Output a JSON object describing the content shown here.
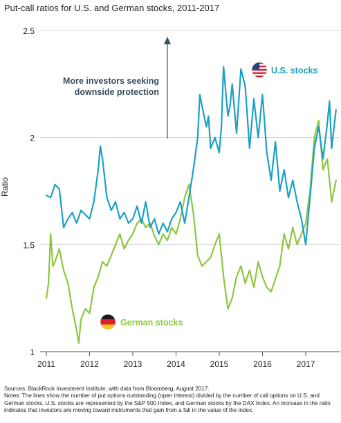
{
  "chart_data": {
    "type": "line",
    "title": "Put-call ratios for U.S. and German stocks, 2011-2017",
    "ylabel": "Ratio",
    "xlabel": "",
    "xlim": [
      2011,
      2017.8
    ],
    "ylim": [
      1,
      2.5
    ],
    "x_ticks": [
      "2011",
      "2012",
      "2013",
      "2014",
      "2015",
      "2016",
      "2017"
    ],
    "y_ticks": [
      "1",
      "1.5",
      "2",
      "2.5"
    ],
    "grid": "horizontal",
    "annotation": [
      "More investors seeking",
      "downside protection"
    ],
    "colors": {
      "us": "#1ba0c4",
      "german": "#8dc63f",
      "annotation": "#3a4f5f",
      "grid": "#c9c9c9"
    },
    "series": [
      {
        "name": "U.S. stocks",
        "flag": "us-flag-icon",
        "x": [
          2011.0,
          2011.1,
          2011.2,
          2011.3,
          2011.4,
          2011.5,
          2011.6,
          2011.7,
          2011.8,
          2011.9,
          2012.0,
          2012.1,
          2012.2,
          2012.25,
          2012.3,
          2012.4,
          2012.5,
          2012.6,
          2012.7,
          2012.8,
          2012.9,
          2013.0,
          2013.1,
          2013.2,
          2013.3,
          2013.4,
          2013.5,
          2013.6,
          2013.7,
          2013.8,
          2013.9,
          2014.0,
          2014.1,
          2014.2,
          2014.3,
          2014.4,
          2014.5,
          2014.55,
          2014.6,
          2014.7,
          2014.75,
          2014.8,
          2014.9,
          2015.0,
          2015.05,
          2015.1,
          2015.2,
          2015.25,
          2015.3,
          2015.4,
          2015.5,
          2015.6,
          2015.7,
          2015.8,
          2015.9,
          2016.0,
          2016.1,
          2016.2,
          2016.3,
          2016.4,
          2016.5,
          2016.6,
          2016.7,
          2016.8,
          2016.9,
          2017.0,
          2017.1,
          2017.2,
          2017.3,
          2017.4,
          2017.5,
          2017.55,
          2017.6,
          2017.7
        ],
        "values": [
          1.73,
          1.72,
          1.78,
          1.76,
          1.58,
          1.62,
          1.65,
          1.6,
          1.66,
          1.64,
          1.62,
          1.7,
          1.85,
          1.96,
          1.9,
          1.72,
          1.66,
          1.7,
          1.62,
          1.65,
          1.6,
          1.62,
          1.68,
          1.6,
          1.7,
          1.58,
          1.62,
          1.55,
          1.6,
          1.56,
          1.62,
          1.65,
          1.7,
          1.6,
          1.72,
          1.85,
          2.0,
          2.2,
          2.15,
          2.05,
          2.1,
          1.95,
          2.0,
          1.93,
          2.05,
          2.33,
          2.1,
          2.15,
          2.25,
          2.02,
          2.32,
          2.24,
          1.95,
          2.18,
          2.0,
          2.2,
          1.93,
          1.8,
          1.98,
          1.75,
          1.85,
          1.72,
          1.8,
          1.7,
          1.62,
          1.5,
          1.72,
          1.95,
          2.05,
          1.9,
          2.07,
          2.17,
          1.95,
          2.13
        ]
      },
      {
        "name": "German stocks",
        "flag": "german-flag-icon",
        "x": [
          2011.0,
          2011.05,
          2011.1,
          2011.15,
          2011.2,
          2011.3,
          2011.4,
          2011.5,
          2011.6,
          2011.7,
          2011.75,
          2011.8,
          2011.9,
          2012.0,
          2012.1,
          2012.2,
          2012.3,
          2012.4,
          2012.5,
          2012.6,
          2012.7,
          2012.8,
          2012.9,
          2013.0,
          2013.1,
          2013.2,
          2013.3,
          2013.4,
          2013.5,
          2013.6,
          2013.7,
          2013.8,
          2013.9,
          2014.0,
          2014.1,
          2014.2,
          2014.3,
          2014.4,
          2014.5,
          2014.6,
          2014.7,
          2014.8,
          2014.9,
          2015.0,
          2015.1,
          2015.2,
          2015.3,
          2015.4,
          2015.5,
          2015.6,
          2015.7,
          2015.8,
          2015.9,
          2016.0,
          2016.1,
          2016.2,
          2016.3,
          2016.4,
          2016.5,
          2016.6,
          2016.7,
          2016.8,
          2016.9,
          2017.0,
          2017.1,
          2017.2,
          2017.3,
          2017.4,
          2017.5,
          2017.6,
          2017.7
        ],
        "values": [
          1.25,
          1.32,
          1.55,
          1.4,
          1.42,
          1.48,
          1.38,
          1.32,
          1.2,
          1.1,
          1.04,
          1.15,
          1.2,
          1.18,
          1.3,
          1.35,
          1.42,
          1.4,
          1.45,
          1.5,
          1.55,
          1.48,
          1.52,
          1.55,
          1.6,
          1.62,
          1.58,
          1.6,
          1.54,
          1.5,
          1.55,
          1.52,
          1.58,
          1.55,
          1.62,
          1.72,
          1.78,
          1.65,
          1.45,
          1.4,
          1.42,
          1.44,
          1.5,
          1.55,
          1.35,
          1.2,
          1.25,
          1.35,
          1.4,
          1.32,
          1.38,
          1.3,
          1.42,
          1.35,
          1.3,
          1.28,
          1.34,
          1.4,
          1.55,
          1.48,
          1.58,
          1.5,
          1.55,
          1.6,
          1.75,
          2.0,
          2.08,
          1.85,
          1.9,
          1.7,
          1.8
        ]
      }
    ]
  },
  "footnotes": {
    "sources": "Sources: BlackRock Investment Institute, with data from Bloomberg, August 2017.",
    "notes": "Notes: The lines show the number of put options outstanding (open interest) divided by the number of call options on U.S. and German stocks. U.S. stocks are represented by the S&P 500 Index, and German stocks by the DAX Index. An increase in the ratio indicates that investors are moving toward instruments that gain from a fall in the value of the index."
  }
}
